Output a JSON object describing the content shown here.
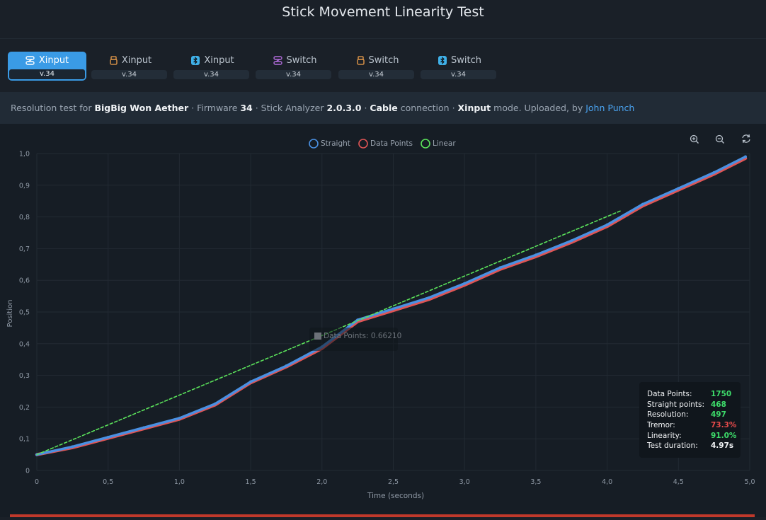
{
  "header": {
    "title": "Stick Movement Linearity Test"
  },
  "tabs": [
    {
      "label": "Xinput",
      "version": "v.34",
      "icon": "cable-icon",
      "icon_color": "#ffffff",
      "active": true
    },
    {
      "label": "Xinput",
      "version": "v.34",
      "icon": "usb-dongle-icon",
      "icon_color": "#f0a04b",
      "active": false
    },
    {
      "label": "Xinput",
      "version": "v.34",
      "icon": "bluetooth-icon",
      "icon_color": "#3fb0e8",
      "active": false
    },
    {
      "label": "Switch",
      "version": "v.34",
      "icon": "cable-icon",
      "icon_color": "#b26cdc",
      "active": false
    },
    {
      "label": "Switch",
      "version": "v.34",
      "icon": "usb-dongle-icon",
      "icon_color": "#f0a04b",
      "active": false
    },
    {
      "label": "Switch",
      "version": "v.34",
      "icon": "bluetooth-icon",
      "icon_color": "#3fb0e8",
      "active": false
    }
  ],
  "info": {
    "prefix": "Resolution test for ",
    "device": "BigBig Won Aether",
    "firmware_label": " · Firmware ",
    "firmware": "34",
    "analyzer_label": " · Stick Analyzer ",
    "analyzer_version": "2.0.3.0",
    "sep1": " · ",
    "connection": "Cable",
    "connection_suffix": " connection · ",
    "mode": "Xinput",
    "mode_suffix": " mode. Uploaded, by ",
    "uploader": "John Punch"
  },
  "toolbar": {
    "zoom_in": "zoom-in-icon",
    "zoom_out": "zoom-out-icon",
    "reset": "reset-icon"
  },
  "tooltip": {
    "text": "Data Points: 0.66210"
  },
  "stats": [
    {
      "label": "Data Points:",
      "value": "1750",
      "color": "#3ddc6a"
    },
    {
      "label": "Straight points:",
      "value": "468",
      "color": "#3ddc6a"
    },
    {
      "label": "Resolution:",
      "value": "497",
      "color": "#3ddc6a"
    },
    {
      "label": "Tremor:",
      "value": "73.3%",
      "color": "#e84b4b"
    },
    {
      "label": "Linearity:",
      "value": "91.0%",
      "color": "#3ddc6a"
    },
    {
      "label": "Test duration:",
      "value": "4.97s",
      "color": "#f2f4f6"
    }
  ],
  "chart_data": {
    "type": "line",
    "xlabel": "Time (seconds)",
    "ylabel": "Position",
    "xlim": [
      0,
      5
    ],
    "ylim": [
      0,
      1
    ],
    "x_ticks": [
      "0",
      "0,5",
      "1,0",
      "1,5",
      "2,0",
      "2,5",
      "3,0",
      "3,5",
      "4,0",
      "4,5",
      "5,0"
    ],
    "y_ticks": [
      "0",
      "0,1",
      "0,2",
      "0,3",
      "0,4",
      "0,5",
      "0,6",
      "0,7",
      "0,8",
      "0,9",
      "1,0"
    ],
    "legend_position": "top-center",
    "grid": true,
    "series": [
      {
        "name": "Straight",
        "color": "#4a90e2",
        "x": [
          0.0,
          0.25,
          0.5,
          0.75,
          1.0,
          1.25,
          1.5,
          1.75,
          2.0,
          2.25,
          2.5,
          2.75,
          3.0,
          3.25,
          3.5,
          3.75,
          4.0,
          4.25,
          4.5,
          4.75,
          4.97
        ],
        "y": [
          0.05,
          0.075,
          0.105,
          0.135,
          0.165,
          0.21,
          0.28,
          0.33,
          0.39,
          0.475,
          0.51,
          0.545,
          0.59,
          0.64,
          0.68,
          0.725,
          0.775,
          0.84,
          0.89,
          0.94,
          0.99
        ]
      },
      {
        "name": "Data Points",
        "color": "#e05555",
        "x": [
          0.0,
          0.25,
          0.5,
          0.75,
          1.0,
          1.25,
          1.5,
          1.75,
          2.0,
          2.25,
          2.5,
          2.75,
          3.0,
          3.25,
          3.5,
          3.75,
          4.0,
          4.25,
          4.5,
          4.75,
          4.97
        ],
        "y": [
          0.05,
          0.072,
          0.102,
          0.132,
          0.162,
          0.207,
          0.277,
          0.327,
          0.385,
          0.47,
          0.505,
          0.54,
          0.585,
          0.635,
          0.675,
          0.72,
          0.77,
          0.835,
          0.885,
          0.935,
          0.985
        ]
      },
      {
        "name": "Linear",
        "color": "#5be35b",
        "dashed": true,
        "x": [
          0.0,
          4.1
        ],
        "y": [
          0.05,
          0.82
        ]
      }
    ]
  }
}
